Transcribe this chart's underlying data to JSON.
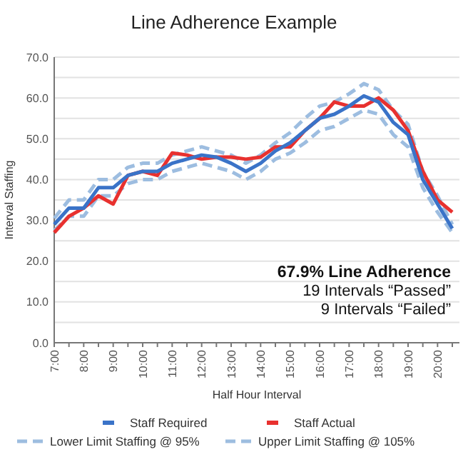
{
  "chart_data": {
    "type": "line",
    "title": "Line Adherence Example",
    "xlabel": "Half Hour Interval",
    "ylabel": "Interval Staffing",
    "categories": [
      "7:00",
      null,
      "8:00",
      null,
      "9:00",
      null,
      "10:00",
      null,
      "11:00",
      null,
      "12:00",
      null,
      "13:00",
      null,
      "14:00",
      null,
      "15:00",
      null,
      "16:00",
      null,
      "17:00",
      null,
      "18:00",
      null,
      "19:00",
      null,
      "20:00",
      null
    ],
    "series": [
      {
        "name": "Staff Required",
        "color": "#3a73c8",
        "values": [
          29,
          33,
          33,
          38,
          38,
          41,
          42,
          42,
          44,
          45,
          46,
          45.5,
          44,
          42,
          44,
          47,
          49,
          52,
          55,
          56,
          58,
          60.5,
          59,
          54,
          51,
          40,
          34,
          28
        ]
      },
      {
        "name": "Staff Actual",
        "color": "#e8312f",
        "values": [
          27,
          31,
          33,
          36,
          34,
          41,
          42,
          41,
          46.5,
          46,
          45,
          45.5,
          45.5,
          45,
          45.5,
          48,
          48,
          52,
          55,
          59,
          58,
          58,
          60,
          57,
          52,
          42,
          35,
          32
        ]
      },
      {
        "name": "Lower Limit Staffing @ 95%",
        "color": "#9dbde0",
        "line_style": "dashed",
        "values": [
          27.5,
          31,
          31,
          36,
          36,
          39,
          40,
          40,
          42,
          43,
          44,
          43,
          42,
          40,
          42,
          45,
          46.5,
          49,
          52,
          53,
          55,
          57,
          56,
          51,
          48,
          38,
          32,
          27
        ]
      },
      {
        "name": "Upper Limit Staffing @ 105%",
        "color": "#9dbde0",
        "line_style": "dashed",
        "values": [
          30.5,
          35,
          35,
          40,
          40,
          43,
          44,
          44,
          46,
          47,
          48,
          47,
          46,
          44,
          46,
          49,
          51.5,
          55,
          58,
          59,
          61,
          63.5,
          62,
          57,
          53.5,
          42,
          36,
          29
        ]
      }
    ],
    "ylim": [
      0,
      70
    ],
    "yticks": [
      {
        "value": 0,
        "label": "0.0"
      },
      {
        "value": 5,
        "label": null
      },
      {
        "value": 10,
        "label": "10.0"
      },
      {
        "value": 15,
        "label": null
      },
      {
        "value": 20,
        "label": "20.0"
      },
      {
        "value": 25,
        "label": null
      },
      {
        "value": 30,
        "label": "30.0"
      },
      {
        "value": 35,
        "label": null
      },
      {
        "value": 40,
        "label": "40.0"
      },
      {
        "value": 45,
        "label": null
      },
      {
        "value": 50,
        "label": "50.0"
      },
      {
        "value": 55,
        "label": null
      },
      {
        "value": 60,
        "label": "60.0"
      },
      {
        "value": 65,
        "label": null
      },
      {
        "value": 70,
        "label": "70.0"
      }
    ],
    "grid": "y",
    "legend": "bottom",
    "line_style": "solid",
    "annotations": [
      "67.9% Line Adherence",
      "19 Intervals “Passed”",
      "9 Intervals “Failed”"
    ]
  }
}
